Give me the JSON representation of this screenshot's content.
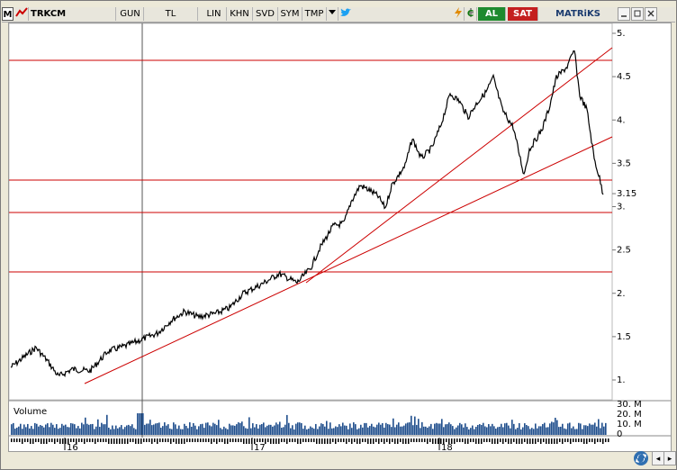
{
  "toolbar": {
    "app_icon": "M",
    "symbol": "TRKCM",
    "period": "GUN",
    "currency": "TL",
    "scale": "LIN",
    "b1": "KHN",
    "b2": "SVD",
    "b3": "SYM",
    "b4": "TMP",
    "buy": "AL",
    "sell": "SAT",
    "brand": "MATRiKS",
    "refresh_label": "C"
  },
  "chart": {
    "y_ticks": [
      "5.",
      "4.5",
      "4.",
      "3.5",
      "3.15",
      "3.",
      "2.5",
      "2.",
      "1.5",
      "1."
    ],
    "x_ticks": [
      "16",
      "17",
      "18"
    ],
    "volume_title": "Volume",
    "volume_ticks": [
      "30. M",
      "20. M",
      "10. M",
      "0"
    ],
    "last_price": "3.15"
  },
  "colors": {
    "line": "#000000",
    "trend": "#cc0000",
    "volume": "#1f4e8c",
    "al_bg": "#1e8a2e",
    "sat_bg": "#c41f1f"
  },
  "icons": [
    "menu-icon",
    "chart-type-icon",
    "dropdown-icon",
    "twitter-icon",
    "lightning-icon",
    "refresh-icon",
    "minimize-icon",
    "maximize-icon",
    "close-icon",
    "sync-icon"
  ]
}
